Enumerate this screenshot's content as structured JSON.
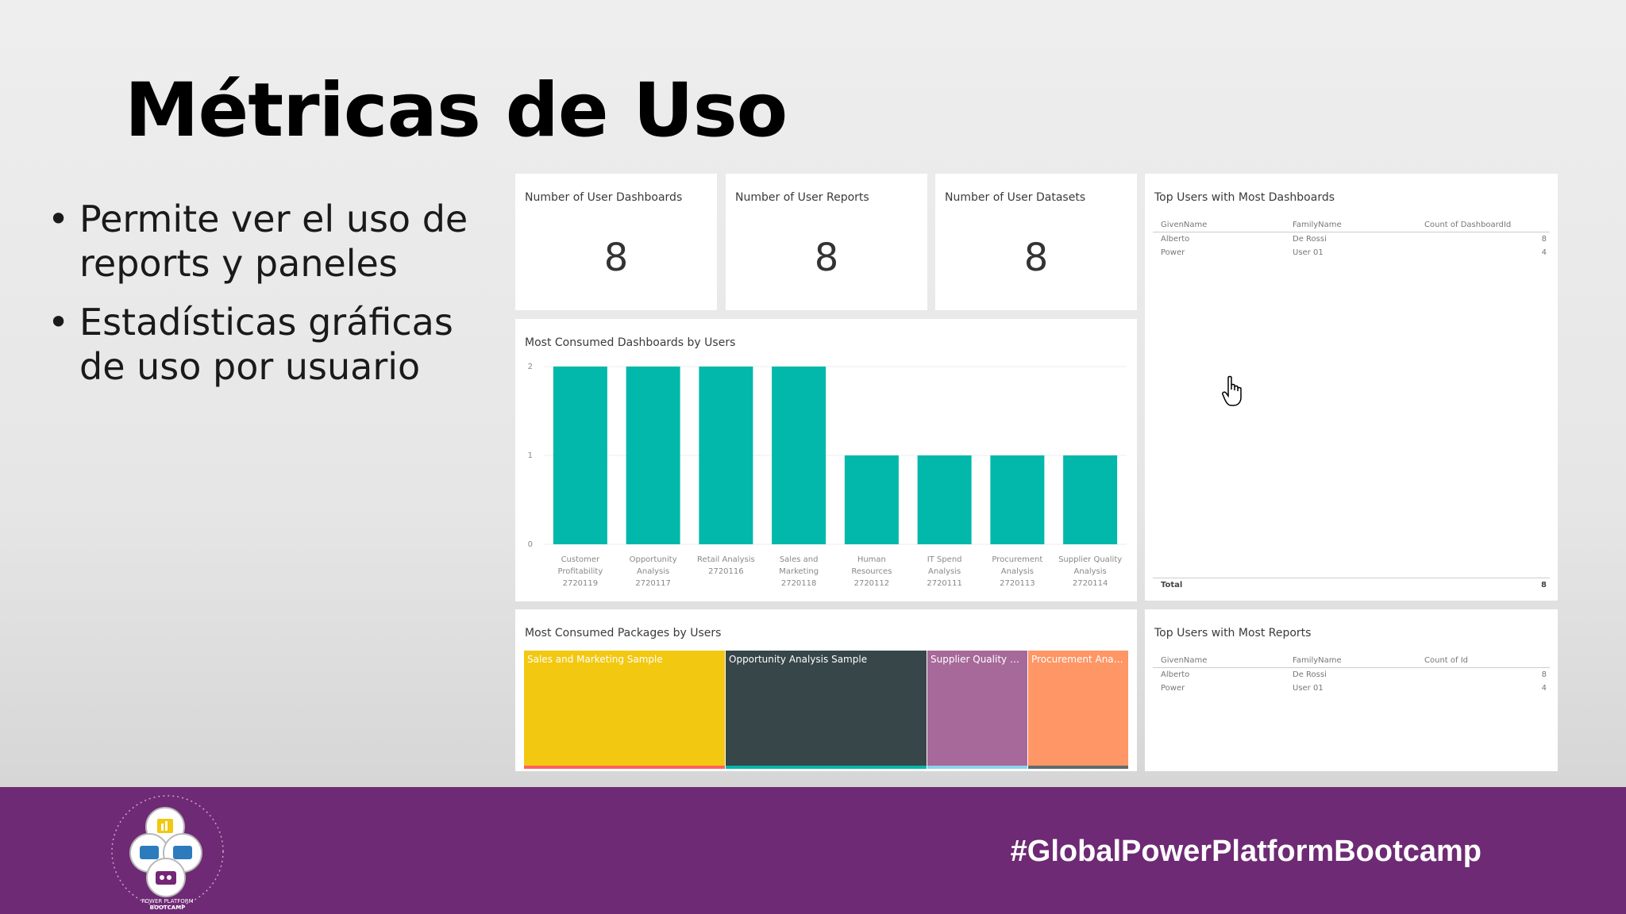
{
  "slide": {
    "title": "Métricas de Uso",
    "bullets": [
      "Permite ver el uso de reports y paneles",
      "Estadísticas gráficas de uso por usuario"
    ],
    "hashtag": "#GlobalPowerPlatformBootcamp",
    "logo_text": "POWER PLATFORM BOOTCAMP",
    "footer_color": "#6e2a74"
  },
  "cards": [
    {
      "title": "Number of User Dashboards",
      "value": "8"
    },
    {
      "title": "Number of User Reports",
      "value": "8"
    },
    {
      "title": "Number of User Datasets",
      "value": "8"
    }
  ],
  "top_dashboards": {
    "title": "Top Users with Most Dashboards",
    "columns": [
      "GivenName",
      "FamilyName",
      "Count of DashboardId"
    ],
    "rows": [
      [
        "Alberto",
        "De Rossi",
        "8"
      ],
      [
        "Power",
        "User 01",
        "4"
      ]
    ],
    "total_label": "Total",
    "total_value": "8"
  },
  "top_reports": {
    "title": "Top Users with Most Reports",
    "columns": [
      "GivenName",
      "FamilyName",
      "Count of Id"
    ],
    "rows": [
      [
        "Alberto",
        "De Rossi",
        "8"
      ],
      [
        "Power",
        "User 01",
        "4"
      ]
    ]
  },
  "packages": {
    "title": "Most Consumed Packages by Users",
    "items": [
      {
        "label": "Sales and Marketing Sample",
        "color": "#f2c811",
        "border": "#fd625e"
      },
      {
        "label": "Opportunity Analysis Sample",
        "color": "#374649",
        "border": "#01b8aa"
      },
      {
        "label": "Supplier Quality An...",
        "color": "#a66999",
        "border": "#8ad4eb"
      },
      {
        "label": "Procurement Analys...",
        "color": "#fe9666",
        "border": "#5f6b6d"
      }
    ]
  },
  "chart_data": {
    "type": "bar",
    "title": "Most Consumed Dashboards by Users",
    "categories": [
      [
        "Customer",
        "Profitability",
        "2720119"
      ],
      [
        "Opportunity",
        "Analysis",
        "2720117"
      ],
      [
        "Retail Analysis",
        "2720116"
      ],
      [
        "Sales and",
        "Marketing",
        "2720118"
      ],
      [
        "Human",
        "Resources",
        "2720112"
      ],
      [
        "IT Spend",
        "Analysis",
        "2720111"
      ],
      [
        "Procurement",
        "Analysis",
        "2720113"
      ],
      [
        "Supplier Quality",
        "Analysis",
        "2720114"
      ]
    ],
    "values": [
      2,
      2,
      2,
      2,
      1,
      1,
      1,
      1
    ],
    "yticks": [
      0,
      1,
      2
    ],
    "ylim": [
      0,
      2
    ],
    "bar_color": "#01b8aa",
    "grid": true
  }
}
